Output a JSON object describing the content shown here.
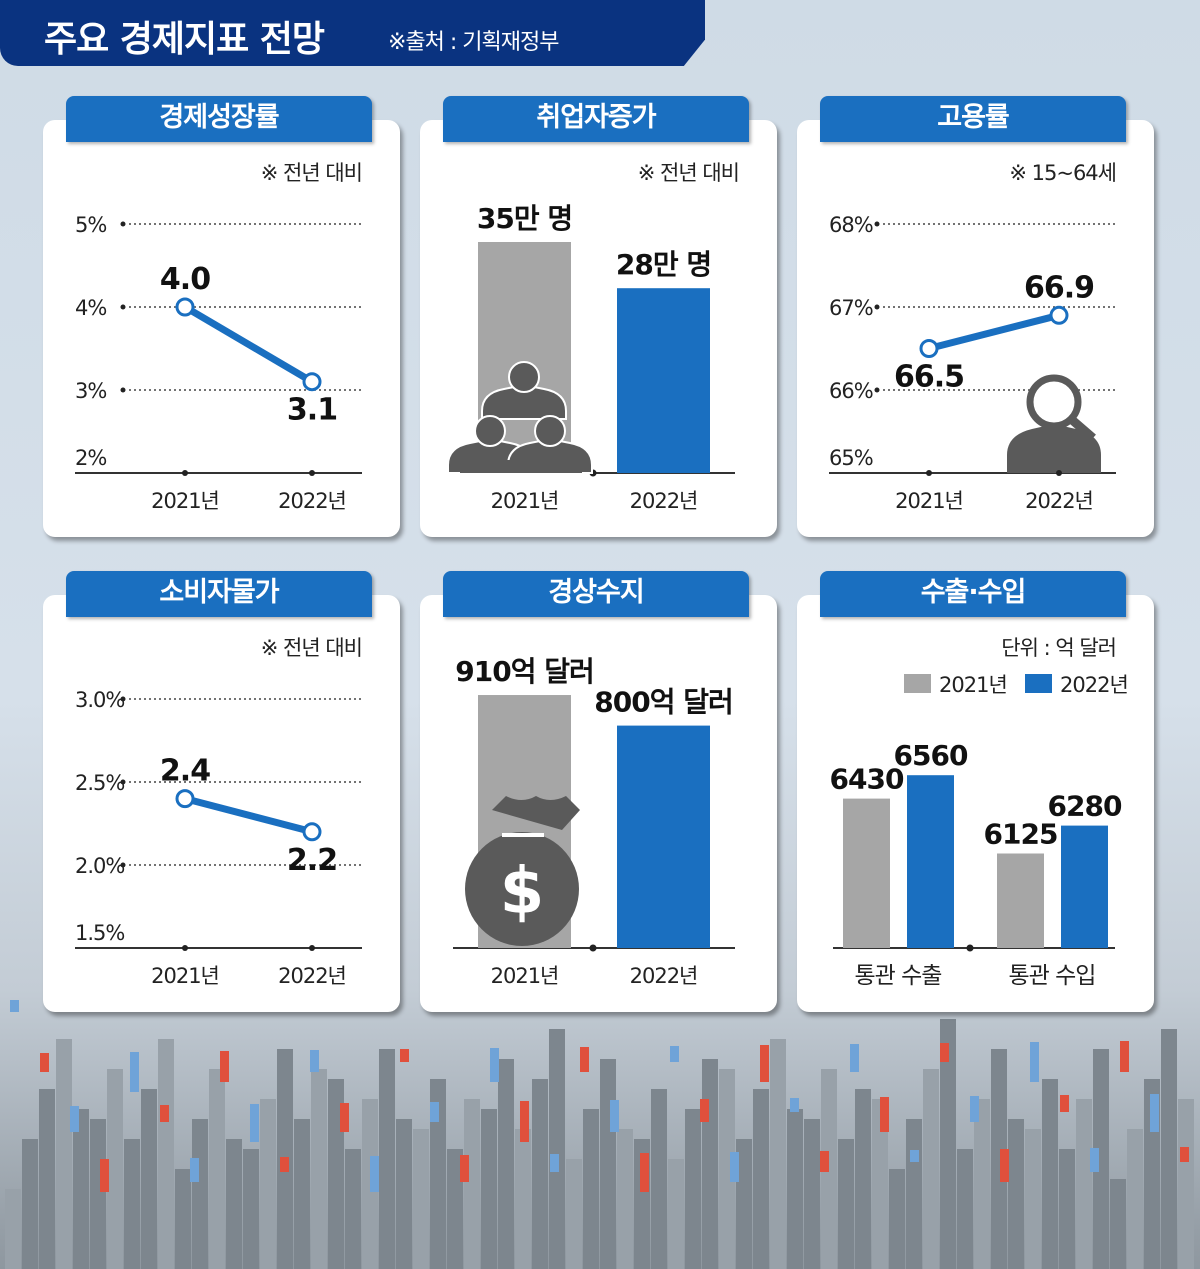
{
  "header": {
    "title": "주요 경제지표 전망",
    "source": "※출처 : 기획재정부"
  },
  "colors": {
    "navy": "#0a3380",
    "blue": "#1a6fc0",
    "gray": "#a6a6a6",
    "icon": "#5a5a5a"
  },
  "chart_data": [
    {
      "type": "line",
      "title": "경제성장률",
      "note": "※ 전년 대비",
      "categories": [
        "2021년",
        "2022년"
      ],
      "values": [
        4.0,
        3.1
      ],
      "value_labels": [
        "4.0",
        "3.1"
      ],
      "yticks": [
        5,
        4,
        3,
        2
      ],
      "ytick_labels": [
        "5%",
        "4%",
        "3%",
        "2%"
      ],
      "ylim": [
        2,
        5
      ],
      "grid": "dotted"
    },
    {
      "type": "bar",
      "title": "취업자증가",
      "note": "※ 전년 대비",
      "categories": [
        "2021년",
        "2022년"
      ],
      "values": [
        35,
        28
      ],
      "value_labels": [
        "35만 명",
        "28만 명"
      ],
      "unit": "만 명",
      "icon": "people-group-icon"
    },
    {
      "type": "line",
      "title": "고용률",
      "note": "※ 15~64세",
      "categories": [
        "2021년",
        "2022년"
      ],
      "values": [
        66.5,
        66.9
      ],
      "value_labels": [
        "66.5",
        "66.9"
      ],
      "yticks": [
        68,
        67,
        66,
        65
      ],
      "ytick_labels": [
        "68%",
        "67%",
        "66%",
        "65%"
      ],
      "ylim": [
        65,
        68
      ],
      "grid": "dotted",
      "icon": "person-magnifier-icon"
    },
    {
      "type": "line",
      "title": "소비자물가",
      "note": "※ 전년 대비",
      "categories": [
        "2021년",
        "2022년"
      ],
      "values": [
        2.4,
        2.2
      ],
      "value_labels": [
        "2.4",
        "2.2"
      ],
      "yticks": [
        3.0,
        2.5,
        2.0,
        1.5
      ],
      "ytick_labels": [
        "3.0%",
        "2.5%",
        "2.0%",
        "1.5%"
      ],
      "ylim": [
        1.5,
        3.0
      ],
      "grid": "dotted"
    },
    {
      "type": "bar",
      "title": "경상수지",
      "categories": [
        "2021년",
        "2022년"
      ],
      "values": [
        910,
        800
      ],
      "value_labels": [
        "910억 달러",
        "800억 달러"
      ],
      "unit": "억 달러",
      "icon": "money-bag-icon"
    },
    {
      "type": "bar",
      "title": "수출·수입",
      "note": "단위 : 억 달러",
      "categories": [
        "통관 수출",
        "통관 수입"
      ],
      "series": [
        {
          "name": "2021년",
          "values": [
            6430,
            6125
          ]
        },
        {
          "name": "2022년",
          "values": [
            6560,
            6280
          ]
        }
      ],
      "legend": "top-right"
    }
  ]
}
